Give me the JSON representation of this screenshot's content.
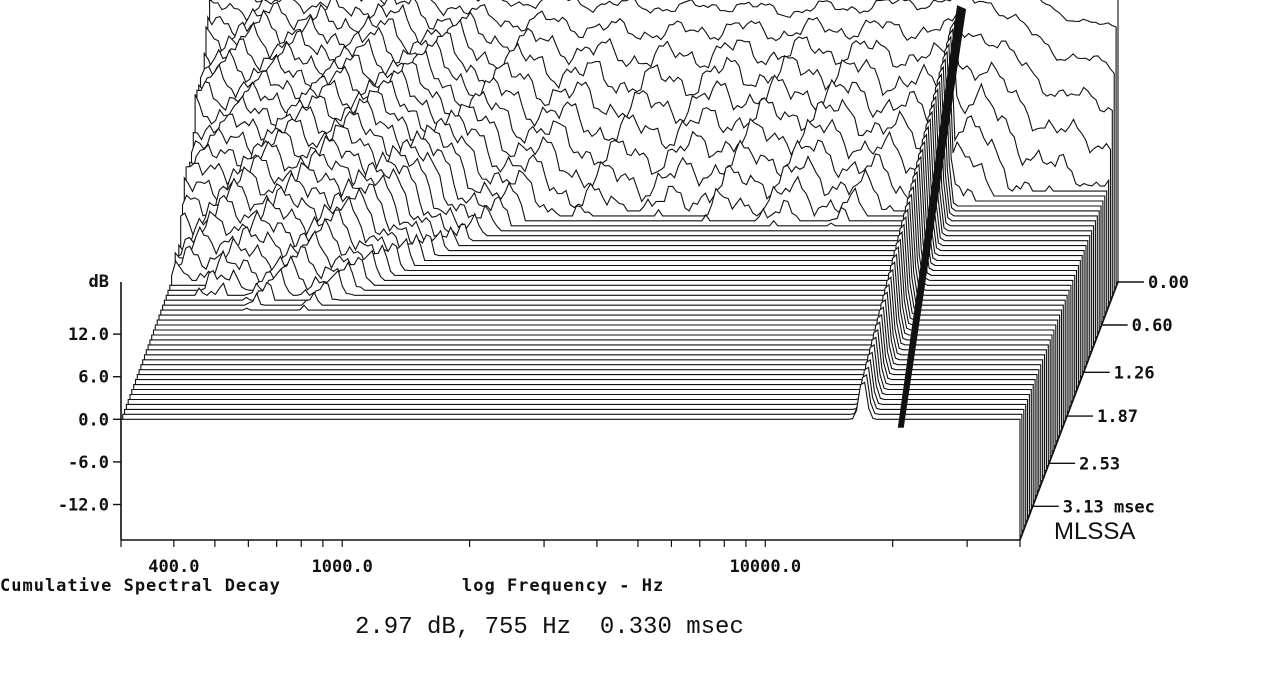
{
  "chart_data": {
    "type": "waterfall",
    "title": "Cumulative Spectral Decay",
    "xlabel": "log Frequency - Hz",
    "ylabel": "dB",
    "x_scale": "log",
    "x_range_hz": [
      300,
      40000
    ],
    "x_tick_labels": [
      {
        "hz": 400,
        "label": "400.0"
      },
      {
        "hz": 1000,
        "label": "1000.0"
      },
      {
        "hz": 10000,
        "label": "10000.0"
      }
    ],
    "y_ticks": [
      12.0,
      6.0,
      0.0,
      -6.0,
      -12.0
    ],
    "y_tick_labels": [
      "12.0",
      "6.0",
      "0.0",
      "-6.0",
      "-12.0"
    ],
    "y_range_db": [
      -17,
      30
    ],
    "time_ticks_msec": [
      0.0,
      0.6,
      1.26,
      1.87,
      2.53,
      3.13
    ],
    "time_tick_labels": [
      "0.00",
      "0.60",
      "1.26",
      "1.87",
      "2.53",
      "3.13 msec"
    ],
    "slice_count": 53,
    "time_end_msec": 3.6,
    "cursor": {
      "freq_hz": 755,
      "level_db": 2.97,
      "time_msec": 0.33
    },
    "resonance_ridge_hz": 17000,
    "brand": "MLSSA",
    "readout": "2.97 dB, 755 Hz  0.330 msec",
    "initial_response": {
      "freq_hz": [
        300,
        400,
        500,
        600,
        755,
        900,
        1100,
        1300,
        1600,
        2000,
        2500,
        3000,
        4000,
        5000,
        6000,
        7000,
        8000,
        9000,
        10000,
        12000,
        14000,
        16000,
        18000,
        20000,
        25000,
        30000,
        35000,
        40000
      ],
      "level_db": [
        27,
        27,
        27.5,
        27.5,
        29,
        29,
        28.5,
        27.5,
        28,
        29,
        29,
        29,
        28.5,
        28.5,
        27.5,
        27,
        27.5,
        27.5,
        28,
        29,
        30,
        31,
        32,
        32.5,
        29,
        26,
        25,
        24
      ]
    }
  },
  "captions": {
    "left": "Cumulative Spectral Decay",
    "right": "log Frequency - Hz",
    "readout": "2.97 dB, 755 Hz  0.330 msec",
    "brand": "MLSSA"
  }
}
